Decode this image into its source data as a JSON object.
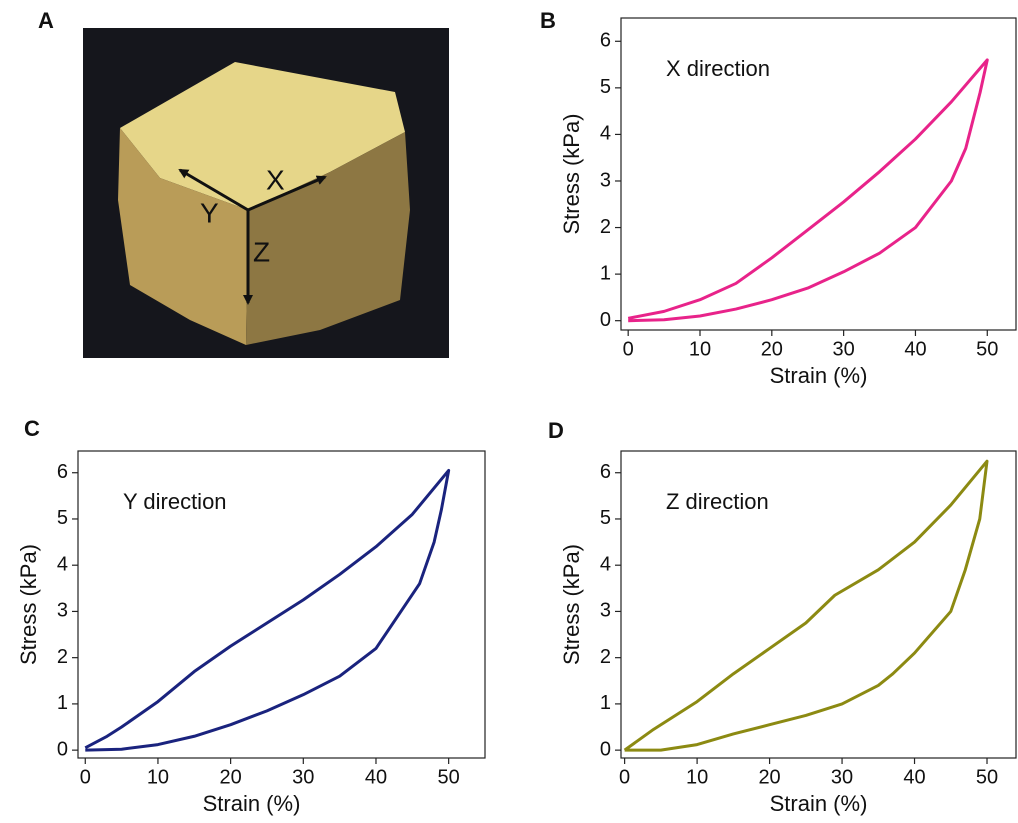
{
  "panel_labels": [
    "A",
    "B",
    "C",
    "D"
  ],
  "photo": {
    "axis_labels": [
      "X",
      "Y",
      "Z"
    ]
  },
  "chart_data": [
    {
      "type": "line",
      "title": "X direction",
      "xlabel": "Strain (%)",
      "ylabel": "Stress (kPa)",
      "color": "#e8238a",
      "x": [
        0,
        5,
        10,
        15,
        20,
        25,
        30,
        35,
        40,
        45,
        50,
        49,
        47,
        45,
        40,
        35,
        30,
        25,
        20,
        15,
        10,
        5,
        0
      ],
      "values": [
        0.05,
        0.2,
        0.45,
        0.8,
        1.35,
        1.95,
        2.55,
        3.2,
        3.9,
        4.7,
        5.6,
        4.9,
        3.7,
        3.0,
        2.0,
        1.45,
        1.05,
        0.7,
        0.45,
        0.25,
        0.1,
        0.02,
        0.0
      ],
      "xlim": [
        -1,
        54
      ],
      "ylim": [
        -0.2,
        6.5
      ],
      "xticks": [
        0,
        10,
        20,
        30,
        40,
        50
      ],
      "yticks": [
        0,
        1,
        2,
        3,
        4,
        5,
        6
      ]
    },
    {
      "type": "line",
      "title": "Y direction",
      "xlabel": "Strain (%)",
      "ylabel": "Stress (kPa)",
      "color": "#1a237e",
      "x": [
        0,
        3,
        5,
        10,
        15,
        20,
        25,
        30,
        35,
        40,
        45,
        50,
        49,
        48,
        46,
        43,
        40,
        35,
        30,
        25,
        20,
        15,
        10,
        5,
        0
      ],
      "values": [
        0.05,
        0.3,
        0.5,
        1.05,
        1.7,
        2.25,
        2.75,
        3.25,
        3.8,
        4.4,
        5.1,
        6.05,
        5.2,
        4.5,
        3.6,
        2.9,
        2.2,
        1.6,
        1.2,
        0.85,
        0.55,
        0.3,
        0.12,
        0.02,
        0.0
      ],
      "xlim": [
        -1,
        55
      ],
      "ylim": [
        -0.17,
        6.47
      ],
      "xticks": [
        0,
        10,
        20,
        30,
        40,
        50
      ],
      "yticks": [
        0,
        1,
        2,
        3,
        4,
        5,
        6
      ]
    },
    {
      "type": "line",
      "title": "Z direction",
      "xlabel": "Strain (%)",
      "ylabel": "Stress (kPa)",
      "color": "#8c8a12",
      "x": [
        0,
        4,
        10,
        15,
        20,
        25,
        29,
        35,
        40,
        45,
        50,
        49,
        47,
        45,
        40,
        37,
        35,
        30,
        25,
        20,
        15,
        10,
        5,
        0
      ],
      "values": [
        0.0,
        0.45,
        1.05,
        1.65,
        2.2,
        2.75,
        3.35,
        3.9,
        4.5,
        5.3,
        6.25,
        5.0,
        3.9,
        3.0,
        2.1,
        1.65,
        1.4,
        1.0,
        0.75,
        0.55,
        0.35,
        0.12,
        0.0,
        0.0
      ],
      "xlim": [
        -0.5,
        54
      ],
      "ylim": [
        -0.17,
        6.47
      ],
      "xticks": [
        0,
        10,
        20,
        30,
        40,
        50
      ],
      "yticks": [
        0,
        1,
        2,
        3,
        4,
        5,
        6
      ]
    }
  ]
}
